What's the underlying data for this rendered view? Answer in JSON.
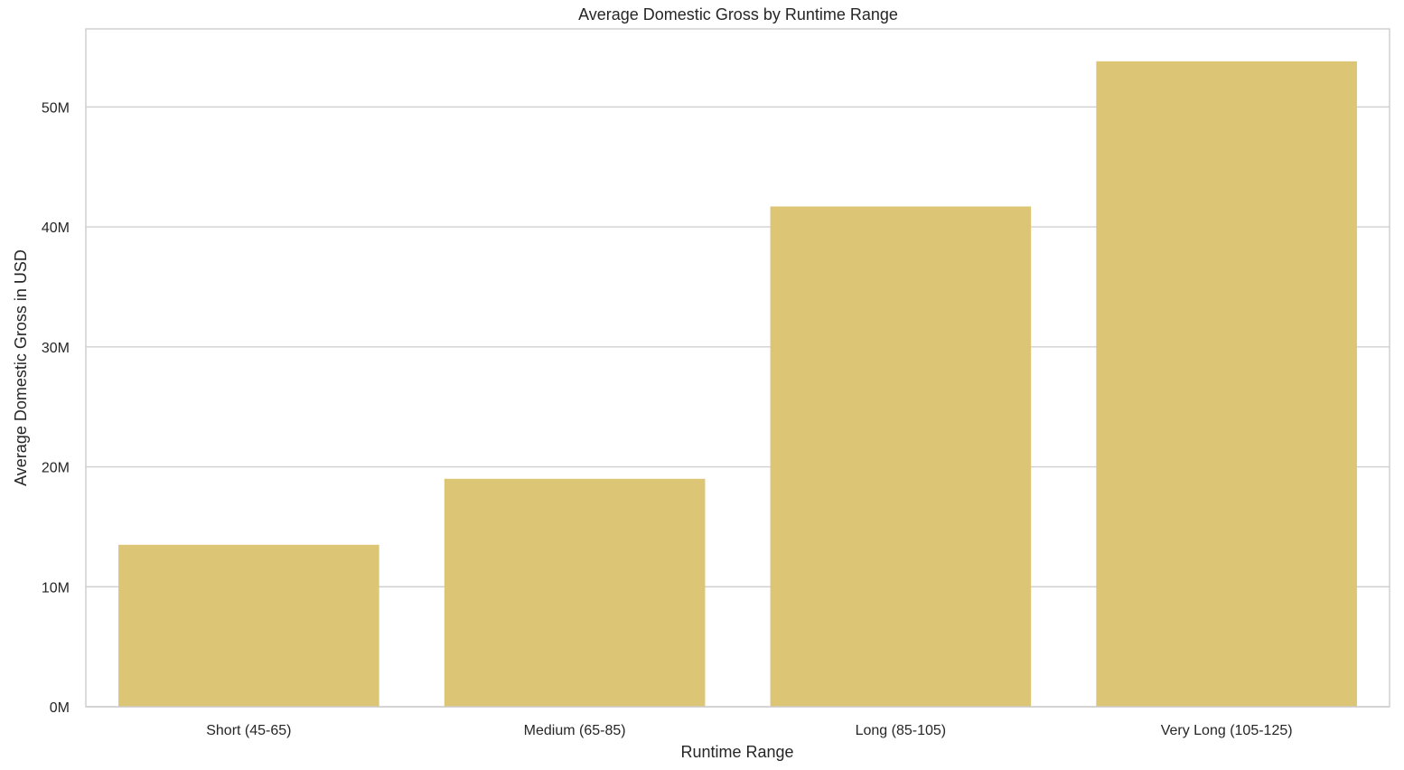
{
  "chart_data": {
    "type": "bar",
    "title": "Average Domestic Gross by Runtime Range",
    "xlabel": "Runtime Range",
    "ylabel": "Average Domestic Gross in USD",
    "categories": [
      "Short (45-65)",
      "Medium (65-85)",
      "Long (85-105)",
      "Very Long (105-125)"
    ],
    "values": [
      13500000,
      19000000,
      41700000,
      53800000
    ],
    "ylim": [
      0,
      56500000
    ],
    "yticks": [
      0,
      10000000,
      20000000,
      30000000,
      40000000,
      50000000
    ],
    "ytick_labels": [
      "0M",
      "10M",
      "20M",
      "30M",
      "40M",
      "50M"
    ],
    "grid": "horizontal",
    "colors": {
      "bar": "#DCC574",
      "grid": "#D0D0D0",
      "frame": "#CCCCCC",
      "text": "#262626"
    }
  }
}
